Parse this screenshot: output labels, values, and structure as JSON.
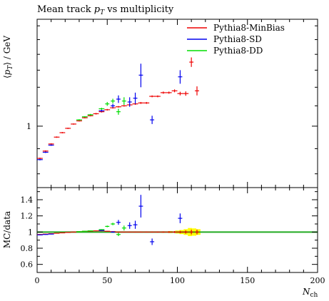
{
  "chart_data": {
    "type": "scatter",
    "title": "Mean track p_T vs multiplicity",
    "title_parts": {
      "pre": "Mean track ",
      "var": "p",
      "sub": "T",
      "post": " vs multiplicity"
    },
    "xlabel": {
      "base": "N",
      "sub": "ch"
    },
    "main_panel": {
      "ylabel": {
        "open": "⟨",
        "var": "p",
        "sub": "T",
        "close": "⟩ / GeV"
      },
      "yscale": "log",
      "ylim": [
        0.75,
        1.65
      ],
      "yticks": [
        1
      ],
      "ytick_labels": [
        "1"
      ]
    },
    "ratio_panel": {
      "ylabel": "MC/data",
      "ylim": [
        0.5,
        1.55
      ],
      "yticks": [
        0.6,
        0.8,
        1,
        1.2,
        1.4
      ],
      "ytick_labels": [
        "0.6",
        "0.8",
        "1",
        "1.2",
        "1.4"
      ],
      "reference_line": 1.0
    },
    "xlim": [
      0,
      200
    ],
    "xticks": [
      0,
      50,
      100,
      150,
      200
    ],
    "xtick_labels": [
      "0",
      "50",
      "100",
      "150",
      "200"
    ],
    "legend_position": "top-right",
    "data_band": {
      "color": "#ffff00",
      "x": [
        2,
        10,
        20,
        30,
        40,
        50,
        60,
        70,
        80,
        90,
        95,
        100,
        103,
        106,
        109,
        112,
        115
      ],
      "err": [
        0.004,
        0.004,
        0.004,
        0.004,
        0.004,
        0.004,
        0.005,
        0.005,
        0.006,
        0.008,
        0.012,
        0.018,
        0.025,
        0.035,
        0.05,
        0.045,
        0.035
      ]
    },
    "series": [
      {
        "name": "Pythia8-MinBias",
        "color": "#ee0000",
        "points": [
          {
            "x": 2,
            "xerr": 2,
            "y": 0.86,
            "yerr": 0.003,
            "r": 0.97,
            "rerr": 0.004
          },
          {
            "x": 6,
            "xerr": 2,
            "y": 0.89,
            "yerr": 0.003,
            "r": 0.975,
            "rerr": 0.004
          },
          {
            "x": 10,
            "xerr": 2,
            "y": 0.92,
            "yerr": 0.003,
            "r": 0.98,
            "rerr": 0.004
          },
          {
            "x": 14,
            "xerr": 2,
            "y": 0.95,
            "yerr": 0.003,
            "r": 0.985,
            "rerr": 0.004
          },
          {
            "x": 18,
            "xerr": 2,
            "y": 0.97,
            "yerr": 0.003,
            "r": 0.99,
            "rerr": 0.004
          },
          {
            "x": 22,
            "xerr": 2,
            "y": 0.99,
            "yerr": 0.003,
            "r": 0.995,
            "rerr": 0.004
          },
          {
            "x": 26,
            "xerr": 2,
            "y": 1.01,
            "yerr": 0.003,
            "r": 1.0,
            "rerr": 0.004
          },
          {
            "x": 30,
            "xerr": 2,
            "y": 1.025,
            "yerr": 0.003,
            "r": 1.005,
            "rerr": 0.004
          },
          {
            "x": 34,
            "xerr": 2,
            "y": 1.04,
            "yerr": 0.003,
            "r": 1.01,
            "rerr": 0.004
          },
          {
            "x": 38,
            "xerr": 2,
            "y": 1.05,
            "yerr": 0.003,
            "r": 1.01,
            "rerr": 0.004
          },
          {
            "x": 42,
            "xerr": 2,
            "y": 1.06,
            "yerr": 0.004,
            "r": 1.015,
            "rerr": 0.004
          },
          {
            "x": 46,
            "xerr": 2,
            "y": 1.07,
            "yerr": 0.004,
            "r": 1.015,
            "rerr": 0.004
          },
          {
            "x": 50,
            "xerr": 2,
            "y": 1.08,
            "yerr": 0.004,
            "r": 1.01,
            "rerr": 0.004
          },
          {
            "x": 54,
            "xerr": 2,
            "y": 1.09,
            "yerr": 0.004,
            "r": 1.005,
            "rerr": 0.004
          },
          {
            "x": 58,
            "xerr": 2,
            "y": 1.095,
            "yerr": 0.004,
            "r": 1.0,
            "rerr": 0.004
          },
          {
            "x": 62,
            "xerr": 2,
            "y": 1.1,
            "yerr": 0.004,
            "r": 1.0,
            "rerr": 0.005
          },
          {
            "x": 66,
            "xerr": 2,
            "y": 1.105,
            "yerr": 0.004,
            "r": 1.0,
            "rerr": 0.005
          },
          {
            "x": 70,
            "xerr": 2,
            "y": 1.11,
            "yerr": 0.005,
            "r": 1.0,
            "rerr": 0.005
          },
          {
            "x": 74,
            "xerr": 2,
            "y": 1.115,
            "yerr": 0.005,
            "r": 1.0,
            "rerr": 0.005
          },
          {
            "x": 78,
            "xerr": 2,
            "y": 1.115,
            "yerr": 0.005,
            "r": 1.0,
            "rerr": 0.006
          },
          {
            "x": 82,
            "xerr": 2,
            "y": 1.15,
            "yerr": 0.005,
            "r": 1.0,
            "rerr": 0.006
          },
          {
            "x": 86,
            "xerr": 2,
            "y": 1.15,
            "yerr": 0.005,
            "r": 1.0,
            "rerr": 0.007
          },
          {
            "x": 90,
            "xerr": 2,
            "y": 1.17,
            "yerr": 0.006,
            "r": 1.0,
            "rerr": 0.008
          },
          {
            "x": 94,
            "xerr": 2,
            "y": 1.17,
            "yerr": 0.006,
            "r": 1.0,
            "rerr": 0.01
          },
          {
            "x": 98,
            "xerr": 2,
            "y": 1.18,
            "yerr": 0.008,
            "r": 1.0,
            "rerr": 0.012
          },
          {
            "x": 102,
            "xerr": 2,
            "y": 1.165,
            "yerr": 0.01,
            "r": 1.0,
            "rerr": 0.015
          },
          {
            "x": 106,
            "xerr": 2,
            "y": 1.165,
            "yerr": 0.012,
            "r": 1.0,
            "rerr": 0.02
          },
          {
            "x": 110,
            "xerr": 1.5,
            "y": 1.35,
            "yerr": 0.03,
            "r": 1.0,
            "rerr": 0.03
          },
          {
            "x": 114,
            "xerr": 1.5,
            "y": 1.18,
            "yerr": 0.025,
            "r": 1.0,
            "rerr": 0.03
          }
        ]
      },
      {
        "name": "Pythia8-SD",
        "color": "#0000ee",
        "points": [
          {
            "x": 2,
            "xerr": 2,
            "y": 0.855,
            "yerr": 0.003,
            "r": 0.965,
            "rerr": 0.004
          },
          {
            "x": 6,
            "xerr": 2,
            "y": 0.885,
            "yerr": 0.003,
            "r": 0.97,
            "rerr": 0.004
          },
          {
            "x": 10,
            "xerr": 2,
            "y": 0.915,
            "yerr": 0.003,
            "r": 0.975,
            "rerr": 0.004
          },
          {
            "x": 46,
            "xerr": 2,
            "y": 1.075,
            "yerr": 0.005,
            "r": 1.02,
            "rerr": 0.005
          },
          {
            "x": 54,
            "xerr": 1.5,
            "y": 1.1,
            "yerr": 0.01,
            "r": 1.0,
            "rerr": 0.008
          },
          {
            "x": 58,
            "xerr": 1.5,
            "y": 1.135,
            "yerr": 0.02,
            "r": 1.12,
            "rerr": 0.03
          },
          {
            "x": 66,
            "xerr": 1.5,
            "y": 1.12,
            "yerr": 0.025,
            "r": 1.08,
            "rerr": 0.04
          },
          {
            "x": 70,
            "xerr": 1.5,
            "y": 1.14,
            "yerr": 0.03,
            "r": 1.09,
            "rerr": 0.05
          },
          {
            "x": 74,
            "xerr": 1.5,
            "y": 1.27,
            "yerr": 0.07,
            "r": 1.32,
            "rerr": 0.14
          },
          {
            "x": 82,
            "xerr": 1.5,
            "y": 1.03,
            "yerr": 0.02,
            "r": 0.88,
            "rerr": 0.04
          },
          {
            "x": 102,
            "xerr": 1.5,
            "y": 1.26,
            "yerr": 0.04,
            "r": 1.17,
            "rerr": 0.06
          }
        ]
      },
      {
        "name": "Pythia8-DD",
        "color": "#00dd00",
        "points": [
          {
            "x": 30,
            "xerr": 2,
            "y": 1.03,
            "yerr": 0.003,
            "r": 1.005,
            "rerr": 0.004
          },
          {
            "x": 34,
            "xerr": 2,
            "y": 1.045,
            "yerr": 0.003,
            "r": 1.01,
            "rerr": 0.004
          },
          {
            "x": 38,
            "xerr": 2,
            "y": 1.055,
            "yerr": 0.004,
            "r": 1.015,
            "rerr": 0.004
          },
          {
            "x": 46,
            "xerr": 2,
            "y": 1.085,
            "yerr": 0.005,
            "r": 1.03,
            "rerr": 0.005
          },
          {
            "x": 50,
            "xerr": 1.5,
            "y": 1.11,
            "yerr": 0.01,
            "r": 1.07,
            "rerr": 0.01
          },
          {
            "x": 54,
            "xerr": 1.5,
            "y": 1.125,
            "yerr": 0.012,
            "r": 1.1,
            "rerr": 0.015
          },
          {
            "x": 58,
            "xerr": 1.5,
            "y": 1.07,
            "yerr": 0.015,
            "r": 0.97,
            "rerr": 0.02
          },
          {
            "x": 62,
            "xerr": 1.5,
            "y": 1.125,
            "yerr": 0.02,
            "r": 1.05,
            "rerr": 0.03
          }
        ]
      }
    ]
  }
}
